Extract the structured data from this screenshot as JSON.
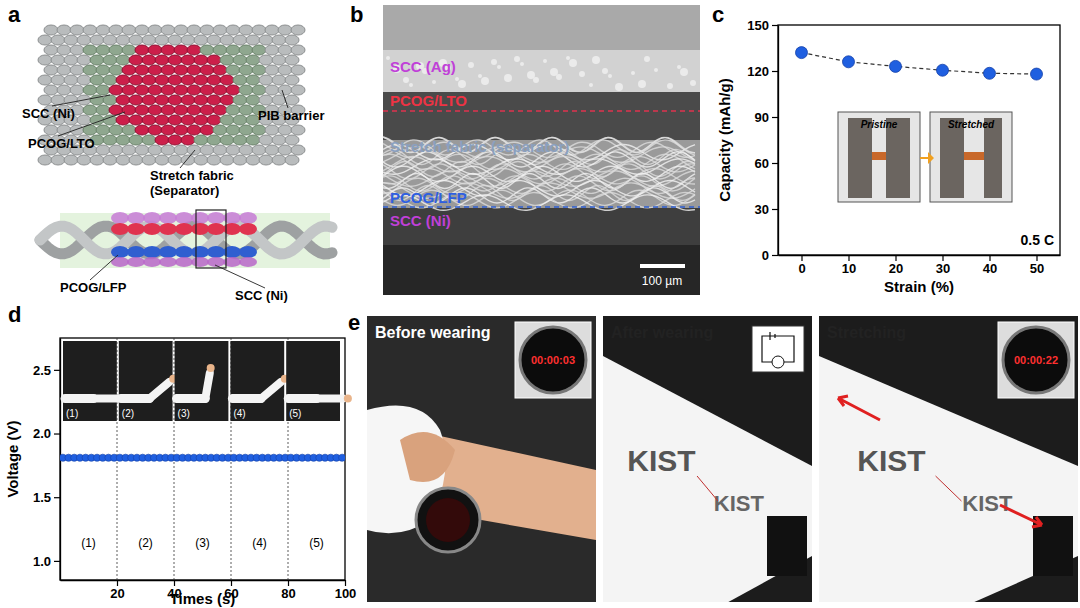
{
  "panels": {
    "a": {
      "title": "a",
      "labels": [
        "SCC (Ni)",
        "PCOG/LTO",
        "Stretch fabric",
        "(Separator)",
        "PIB barrier",
        "PCOG/LFP",
        "SCC (Ni)"
      ]
    },
    "b": {
      "title": "b",
      "layers": [
        "SCC (Ag)",
        "PCOG/LTO",
        "Stretch fabric (separator)",
        "PCOG/LFP",
        "SCC (Ni)"
      ],
      "scale_bar": "100 µm"
    },
    "e": {
      "title": "e",
      "photos": [
        "Before wearing",
        "After wearing",
        "Stretching"
      ],
      "watch_readouts": [
        "00:00:03",
        "00:00:22"
      ],
      "sleeve_text": "KIST"
    }
  },
  "chart_data": [
    {
      "type": "line",
      "title": "c",
      "x": [
        0,
        10,
        20,
        30,
        40,
        50
      ],
      "values": [
        132,
        126,
        123,
        120.5,
        118.5,
        118
      ],
      "color": "#1f5fe0",
      "marker": "circle",
      "line_style": "dashed",
      "xlabel": "Strain (%)",
      "ylabel": "Capacity (mAh/g)",
      "xlim": [
        -5,
        55
      ],
      "ylim": [
        0,
        150
      ],
      "xticks": [
        0,
        10,
        20,
        30,
        40,
        50
      ],
      "yticks": [
        0,
        30,
        60,
        90,
        120,
        150
      ],
      "annotations": [
        "0.5 C"
      ],
      "insets": [
        "Pristine",
        "Stretched"
      ]
    },
    {
      "type": "scatter",
      "title": "d",
      "x": [
        1,
        3,
        5,
        7,
        9,
        11,
        13,
        15,
        17,
        19,
        21,
        23,
        25,
        27,
        29,
        31,
        33,
        35,
        37,
        39,
        41,
        43,
        45,
        47,
        49,
        51,
        53,
        55,
        57,
        59,
        61,
        63,
        65,
        67,
        69,
        71,
        73,
        75,
        77,
        79,
        81,
        83,
        85,
        87,
        89,
        91,
        93,
        95,
        97,
        99
      ],
      "values": [
        1.81,
        1.81,
        1.81,
        1.81,
        1.81,
        1.81,
        1.81,
        1.81,
        1.81,
        1.81,
        1.81,
        1.81,
        1.81,
        1.81,
        1.81,
        1.81,
        1.81,
        1.81,
        1.81,
        1.81,
        1.81,
        1.81,
        1.81,
        1.81,
        1.81,
        1.81,
        1.81,
        1.81,
        1.81,
        1.81,
        1.81,
        1.81,
        1.81,
        1.81,
        1.81,
        1.81,
        1.81,
        1.81,
        1.81,
        1.81,
        1.81,
        1.81,
        1.81,
        1.81,
        1.81,
        1.81,
        1.81,
        1.81,
        1.81,
        1.81
      ],
      "color": "#1f5fe0",
      "marker": "circle",
      "xlabel": "Times (s)",
      "ylabel": "Voltage (V)",
      "xlim": [
        0,
        100
      ],
      "ylim": [
        0.85,
        2.75
      ],
      "xticks": [
        20,
        40,
        60,
        80,
        100
      ],
      "yticks": [
        {
          "value": 1,
          "label": "1.0"
        },
        {
          "value": 1.5,
          "label": "1.5"
        },
        {
          "value": 2,
          "label": "2.0"
        },
        {
          "value": 2.5,
          "label": "2.5"
        }
      ],
      "dividers": [
        20,
        40,
        60,
        80
      ],
      "phases": [
        "(1)",
        "(2)",
        "(3)",
        "(4)",
        "(5)"
      ]
    }
  ]
}
